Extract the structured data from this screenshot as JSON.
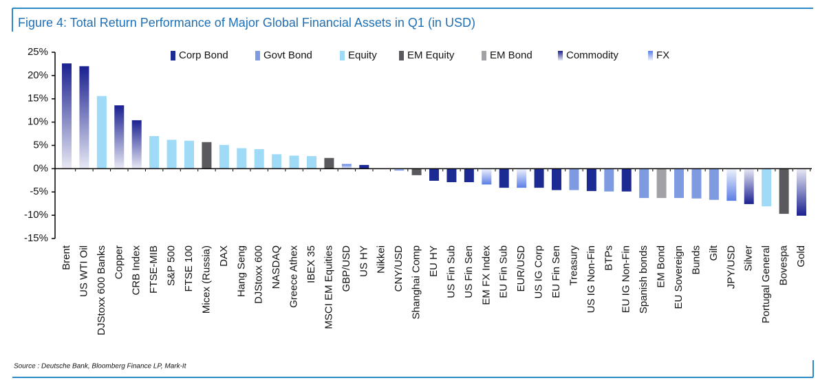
{
  "chart_data": {
    "type": "bar",
    "title": "Figure 4: Total Return Performance of Major Global Financial Assets in Q1 (in USD)",
    "source": "Source : Deutsche Bank, Bloomberg Finance LP, Mark-It",
    "categories": [
      "Brent",
      "US WTI Oil",
      "DJStoxx 600 Banks",
      "Copper",
      "CRB Index",
      "FTSE-MIB",
      "S&P 500",
      "FTSE 100",
      "Micex (Russia)",
      "DAX",
      "Hang Seng",
      "DJStoxx 600",
      "NASDAQ",
      "Greece Athex",
      "IBEX 35",
      "MSCI EM Equities",
      "GBP/USD",
      "US HY",
      "Nikkei",
      "CNY/USD",
      "Shanghai Comp",
      "EU HY",
      "US Fin Sub",
      "US Fin Sen",
      "EM FX Index",
      "EU Fin Sub",
      "EUR/USD",
      "US IG Corp",
      "EU Fin Sen",
      "Treasury",
      "US IG Non-Fin",
      "BTPs",
      "EU IG Non-Fin",
      "Spanish bonds",
      "EM Bond",
      "EU Sovereign",
      "Bunds",
      "Gilt",
      "JPY/USD",
      "Silver",
      "Portugal General",
      "Bovespa",
      "Gold"
    ],
    "series": [
      {
        "name": "Corp Bond",
        "color": "#1c2a94",
        "gradient": false,
        "values": [
          null,
          null,
          null,
          null,
          null,
          null,
          null,
          null,
          null,
          null,
          null,
          null,
          null,
          null,
          null,
          null,
          null,
          0.8,
          null,
          null,
          null,
          -2.6,
          -2.9,
          -2.9,
          null,
          -4.1,
          null,
          -4.1,
          -4.6,
          null,
          -4.8,
          null,
          -4.9,
          null,
          null,
          null,
          null,
          null,
          null,
          null,
          null,
          null,
          null
        ]
      },
      {
        "name": "Govt Bond",
        "color": "#7e9be2",
        "gradient": false,
        "values": [
          null,
          null,
          null,
          null,
          null,
          null,
          null,
          null,
          null,
          null,
          null,
          null,
          null,
          null,
          null,
          null,
          null,
          null,
          null,
          null,
          null,
          null,
          null,
          null,
          null,
          null,
          null,
          null,
          null,
          -4.6,
          null,
          -4.9,
          null,
          -6.3,
          null,
          -6.3,
          -6.4,
          -6.7,
          null,
          null,
          null,
          null,
          null
        ]
      },
      {
        "name": "Equity",
        "color": "#9fdbf6",
        "gradient": false,
        "values": [
          null,
          null,
          15.6,
          null,
          null,
          7.0,
          6.2,
          6.0,
          null,
          5.1,
          4.4,
          4.2,
          3.1,
          2.8,
          2.7,
          null,
          null,
          null,
          -0.1,
          null,
          null,
          null,
          null,
          null,
          null,
          null,
          null,
          null,
          null,
          null,
          null,
          null,
          null,
          null,
          null,
          null,
          null,
          null,
          null,
          null,
          -8.1,
          null,
          null
        ]
      },
      {
        "name": "EM Equity",
        "color": "#5a5a5e",
        "gradient": false,
        "values": [
          null,
          null,
          null,
          null,
          null,
          null,
          null,
          null,
          5.7,
          null,
          null,
          null,
          null,
          null,
          null,
          2.3,
          null,
          null,
          null,
          null,
          -1.4,
          null,
          null,
          null,
          null,
          null,
          null,
          null,
          null,
          null,
          null,
          null,
          null,
          null,
          null,
          null,
          null,
          null,
          null,
          null,
          null,
          -9.7,
          null
        ]
      },
      {
        "name": "EM Bond",
        "color": "#a2a2a6",
        "gradient": false,
        "values": [
          null,
          null,
          null,
          null,
          null,
          null,
          null,
          null,
          null,
          null,
          null,
          null,
          null,
          null,
          null,
          null,
          null,
          null,
          null,
          null,
          null,
          null,
          null,
          null,
          null,
          null,
          null,
          null,
          null,
          null,
          null,
          null,
          null,
          null,
          -6.3,
          null,
          null,
          null,
          null,
          null,
          null,
          null,
          null
        ]
      },
      {
        "name": "Commodity",
        "color": "#1a2090",
        "gradient": true,
        "values": [
          22.6,
          22.0,
          null,
          13.6,
          10.4,
          null,
          null,
          null,
          null,
          null,
          null,
          null,
          null,
          null,
          null,
          null,
          null,
          null,
          null,
          null,
          null,
          null,
          null,
          null,
          null,
          null,
          null,
          null,
          null,
          null,
          null,
          null,
          null,
          null,
          null,
          null,
          null,
          null,
          null,
          -7.6,
          null,
          null,
          -10.1
        ]
      },
      {
        "name": "FX",
        "color": "#5a7ee6",
        "gradient": true,
        "values": [
          null,
          null,
          null,
          null,
          null,
          null,
          null,
          null,
          null,
          null,
          null,
          null,
          null,
          null,
          null,
          null,
          1.0,
          null,
          null,
          -0.4,
          null,
          null,
          null,
          null,
          -3.4,
          null,
          -4.1,
          null,
          null,
          null,
          null,
          null,
          null,
          null,
          null,
          null,
          null,
          null,
          -6.9,
          null,
          null,
          null,
          null
        ]
      }
    ],
    "ylim": [
      -15,
      25
    ],
    "yticks": [
      {
        "value": -15,
        "label": "-15%"
      },
      {
        "value": -10,
        "label": "-10%"
      },
      {
        "value": -5,
        "label": "-5%"
      },
      {
        "value": 0,
        "label": "0%"
      },
      {
        "value": 5,
        "label": "5%"
      },
      {
        "value": 10,
        "label": "10%"
      },
      {
        "value": 15,
        "label": "15%"
      },
      {
        "value": 20,
        "label": "20%"
      },
      {
        "value": 25,
        "label": "25%"
      }
    ],
    "grid": false
  }
}
